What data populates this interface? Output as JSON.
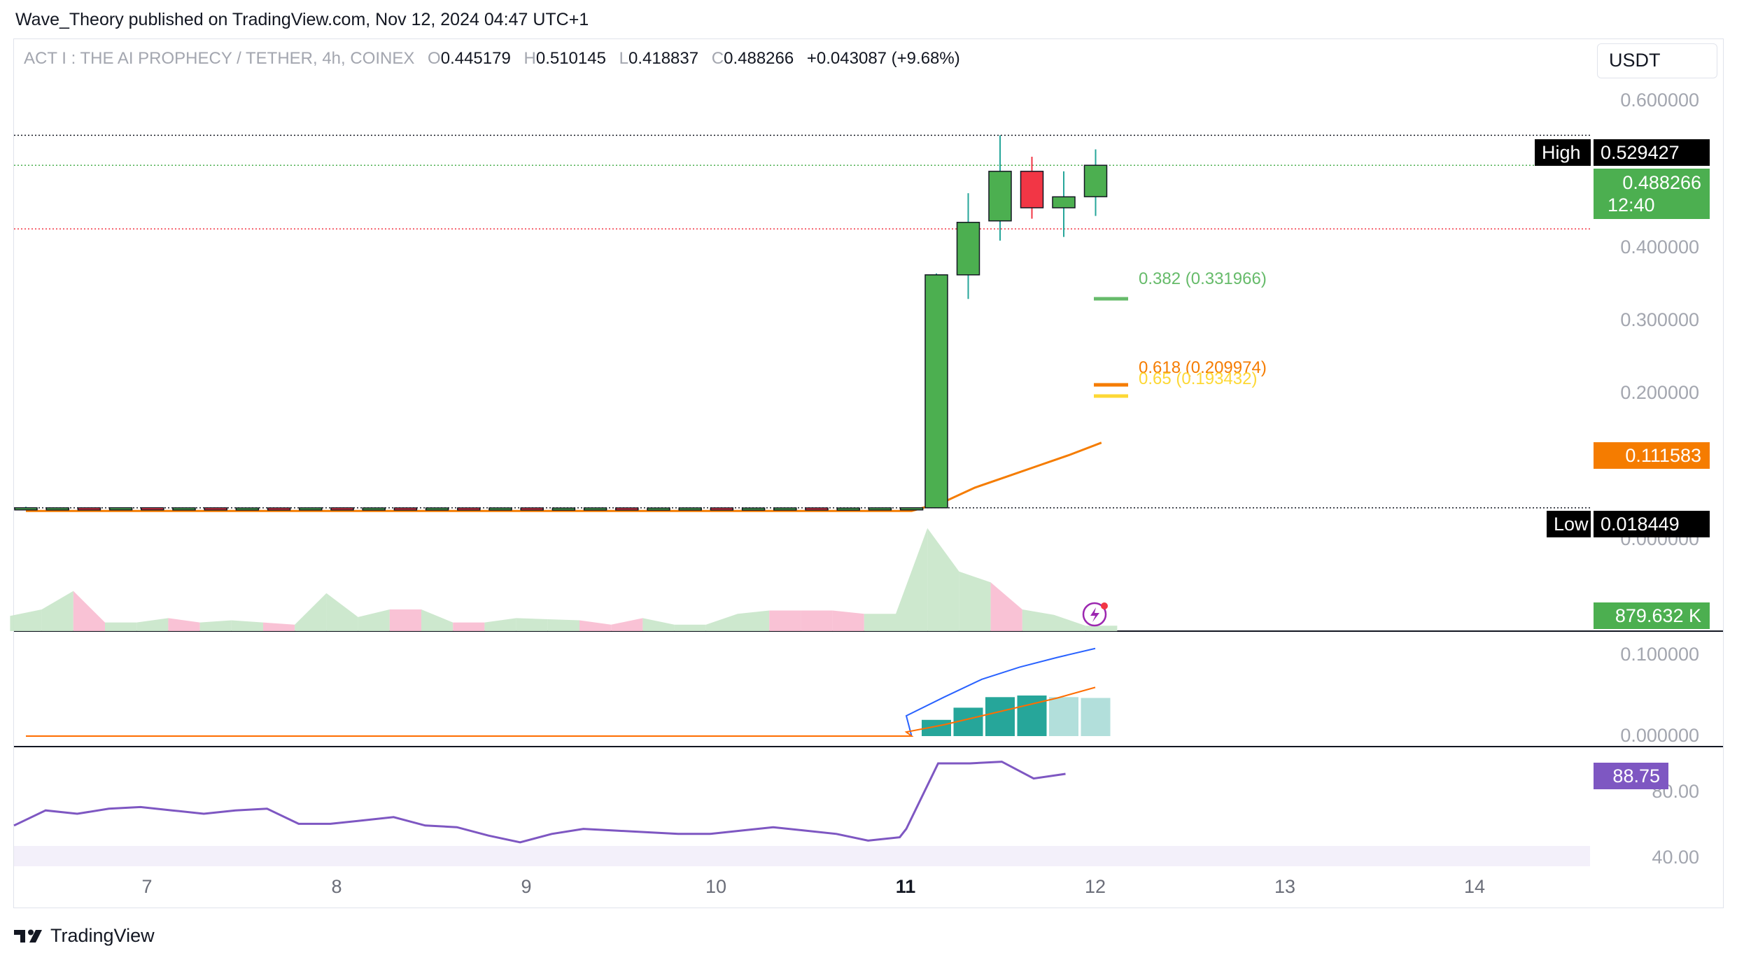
{
  "publish_line": "Wave_Theory published on TradingView.com, Nov 12, 2024 04:47 UTC+1",
  "legend": {
    "symbol": "ACT I : THE AI PROPHECY / TETHER, 4h, COINEX",
    "o_key": "O",
    "o_val": "0.445179",
    "h_key": "H",
    "h_val": "0.510145",
    "l_key": "L",
    "l_val": "0.418837",
    "c_key": "C",
    "c_val": "0.488266",
    "change": "+0.043087 (+9.68%)"
  },
  "currency": "USDT",
  "price_axis_labels": [
    "0.600000",
    "0.400000",
    "0.300000",
    "0.200000",
    "0.000000"
  ],
  "macd_axis_labels": [
    "0.100000",
    "0.000000"
  ],
  "rsi_axis_labels": [
    "80.00",
    "40.00"
  ],
  "tags": {
    "high_label": "High",
    "high_value": "0.529427",
    "last_price": "0.488266",
    "countdown": "12:40",
    "ma_value": "0.111583",
    "low_label": "Low",
    "low_value": "0.018449",
    "volume": "879.632 K",
    "rsi_value": "88.75"
  },
  "fib": {
    "f382": "0.382 (0.331966)",
    "f618": "0.618 (0.209974)",
    "f65": "0.65 (0.193432)"
  },
  "x_labels": [
    "7",
    "8",
    "9",
    "10",
    "11",
    "12",
    "13",
    "14"
  ],
  "brand": "TradingView",
  "colors": {
    "up": "#4caf50",
    "down": "#f23645",
    "ma": "#f57c00",
    "fib382": "#66bb6a",
    "fib618": "#f57c00",
    "fib65": "#fdd835",
    "macd": "#2962ff",
    "signal": "#ff6d00",
    "rsi": "#7e57c2",
    "hist": "#26a69a",
    "hist_light": "#b2dfdb"
  },
  "chart_data": {
    "type": "candlestick",
    "timeframe": "4h",
    "x_axis": [
      "7",
      "8",
      "9",
      "10",
      "11",
      "12",
      "13",
      "14"
    ],
    "price_range": [
      0.0,
      0.6
    ],
    "candles": [
      {
        "o": 0.018,
        "h": 0.02,
        "l": 0.0178,
        "c": 0.0185
      },
      {
        "o": 0.0182,
        "h": 0.0188,
        "l": 0.0178,
        "c": 0.0184
      },
      {
        "o": 0.0184,
        "h": 0.019,
        "l": 0.018,
        "c": 0.0183
      },
      {
        "o": 0.0183,
        "h": 0.019,
        "l": 0.018,
        "c": 0.0185
      },
      {
        "o": 0.0185,
        "h": 0.0192,
        "l": 0.018,
        "c": 0.0182
      },
      {
        "o": 0.0182,
        "h": 0.0188,
        "l": 0.018,
        "c": 0.0184
      },
      {
        "o": 0.0184,
        "h": 0.019,
        "l": 0.018,
        "c": 0.0181
      },
      {
        "o": 0.0181,
        "h": 0.0186,
        "l": 0.0179,
        "c": 0.0183
      },
      {
        "o": 0.0183,
        "h": 0.0188,
        "l": 0.018,
        "c": 0.0182
      },
      {
        "o": 0.0182,
        "h": 0.0187,
        "l": 0.0179,
        "c": 0.0184
      },
      {
        "o": 0.0184,
        "h": 0.0189,
        "l": 0.018,
        "c": 0.0182
      },
      {
        "o": 0.0182,
        "h": 0.0186,
        "l": 0.0179,
        "c": 0.0183
      },
      {
        "o": 0.0183,
        "h": 0.0187,
        "l": 0.018,
        "c": 0.0181
      },
      {
        "o": 0.0181,
        "h": 0.0186,
        "l": 0.0178,
        "c": 0.0183
      },
      {
        "o": 0.0183,
        "h": 0.0187,
        "l": 0.018,
        "c": 0.0182
      },
      {
        "o": 0.0182,
        "h": 0.0186,
        "l": 0.0179,
        "c": 0.0183
      },
      {
        "o": 0.0183,
        "h": 0.0186,
        "l": 0.018,
        "c": 0.0181
      },
      {
        "o": 0.0181,
        "h": 0.0185,
        "l": 0.0178,
        "c": 0.0182
      },
      {
        "o": 0.0182,
        "h": 0.0186,
        "l": 0.0179,
        "c": 0.0183
      },
      {
        "o": 0.0183,
        "h": 0.0186,
        "l": 0.018,
        "c": 0.0181
      },
      {
        "o": 0.0181,
        "h": 0.0185,
        "l": 0.0178,
        "c": 0.0182
      },
      {
        "o": 0.0182,
        "h": 0.0186,
        "l": 0.0179,
        "c": 0.0183
      },
      {
        "o": 0.0183,
        "h": 0.0186,
        "l": 0.018,
        "c": 0.0181
      },
      {
        "o": 0.0181,
        "h": 0.0185,
        "l": 0.0178,
        "c": 0.0182
      },
      {
        "o": 0.0182,
        "h": 0.0186,
        "l": 0.0179,
        "c": 0.0183
      },
      {
        "o": 0.0183,
        "h": 0.0186,
        "l": 0.018,
        "c": 0.0181
      },
      {
        "o": 0.0181,
        "h": 0.0185,
        "l": 0.0178,
        "c": 0.0182
      },
      {
        "o": 0.0182,
        "h": 0.0186,
        "l": 0.0179,
        "c": 0.0184
      },
      {
        "o": 0.0184,
        "h": 0.0188,
        "l": 0.018,
        "c": 0.0185
      },
      {
        "o": 0.0185,
        "h": 0.34,
        "l": 0.0184,
        "c": 0.338
      },
      {
        "o": 0.338,
        "h": 0.45,
        "l": 0.305,
        "c": 0.41
      },
      {
        "o": 0.412,
        "h": 0.5294,
        "l": 0.385,
        "c": 0.48
      },
      {
        "o": 0.48,
        "h": 0.5,
        "l": 0.415,
        "c": 0.43
      },
      {
        "o": 0.43,
        "h": 0.48,
        "l": 0.39,
        "c": 0.445
      },
      {
        "o": 0.4452,
        "h": 0.5101,
        "l": 0.4188,
        "c": 0.4883
      }
    ],
    "ma_line": [
      0.018,
      0.018,
      0.018,
      0.018,
      0.018,
      0.018,
      0.018,
      0.018,
      0.018,
      0.018,
      0.018,
      0.018,
      0.018,
      0.018,
      0.018,
      0.018,
      0.018,
      0.018,
      0.018,
      0.018,
      0.018,
      0.018,
      0.018,
      0.018,
      0.018,
      0.018,
      0.018,
      0.018,
      0.018,
      0.03,
      0.05,
      0.065,
      0.08,
      0.095,
      0.1116
    ],
    "high_line": 0.529427,
    "low_line": 0.018449,
    "last_price_line": 0.488266,
    "prev_close_line": 0.445179,
    "fib_levels": [
      {
        "ratio": 0.382,
        "price": 0.331966
      },
      {
        "ratio": 0.618,
        "price": 0.209974
      },
      {
        "ratio": 0.65,
        "price": 0.193432
      }
    ],
    "volume": [
      14,
      20,
      37,
      8,
      8,
      12,
      8,
      10,
      8,
      6,
      35,
      13,
      20,
      20,
      8,
      8,
      12,
      11,
      10,
      6,
      12,
      6,
      6,
      16,
      19,
      19,
      19,
      16,
      16,
      95,
      55,
      45,
      20,
      15,
      5
    ],
    "volume_up": [
      true,
      true,
      false,
      true,
      true,
      false,
      true,
      true,
      false,
      true,
      true,
      true,
      false,
      true,
      false,
      true,
      true,
      true,
      false,
      false,
      true,
      true,
      true,
      true,
      false,
      false,
      false,
      true,
      true,
      true,
      true,
      false,
      true,
      true,
      true
    ],
    "macd": {
      "range": [
        0.0,
        0.1
      ],
      "macd_line": [
        0.0,
        0.0,
        0.0,
        0.0,
        0.0,
        0.0,
        0.0,
        0.0,
        0.0,
        0.0,
        0.0,
        0.0,
        0.0,
        0.0,
        0.0,
        0.0,
        0.0,
        0.0,
        0.0,
        0.0,
        0.0,
        0.0,
        0.0,
        0.0,
        0.0,
        0.0,
        0.0,
        0.0,
        0.0,
        0.025,
        0.048,
        0.07,
        0.085,
        0.097,
        0.108
      ],
      "signal_line": [
        0.0,
        0.0,
        0.0,
        0.0,
        0.0,
        0.0,
        0.0,
        0.0,
        0.0,
        0.0,
        0.0,
        0.0,
        0.0,
        0.0,
        0.0,
        0.0,
        0.0,
        0.0,
        0.0,
        0.0,
        0.0,
        0.0,
        0.0,
        0.0,
        0.0,
        0.0,
        0.0,
        0.0,
        0.0,
        0.005,
        0.014,
        0.025,
        0.036,
        0.047,
        0.06
      ],
      "histogram": [
        0,
        0,
        0,
        0,
        0,
        0,
        0,
        0,
        0,
        0,
        0,
        0,
        0,
        0,
        0,
        0,
        0,
        0,
        0,
        0,
        0,
        0,
        0,
        0,
        0,
        0,
        0,
        0,
        0,
        0.02,
        0.035,
        0.048,
        0.05,
        0.048,
        0.047
      ]
    },
    "rsi": {
      "range": [
        40,
        80
      ],
      "band": [
        30,
        70
      ],
      "values": [
        58,
        67,
        65,
        68,
        69,
        67,
        65,
        67,
        68,
        59,
        59,
        61,
        63,
        58,
        57,
        52,
        48,
        53,
        56,
        55,
        54,
        53,
        53,
        55,
        57,
        55,
        53,
        49,
        51,
        56,
        95,
        95,
        96,
        86,
        88.75
      ]
    }
  }
}
